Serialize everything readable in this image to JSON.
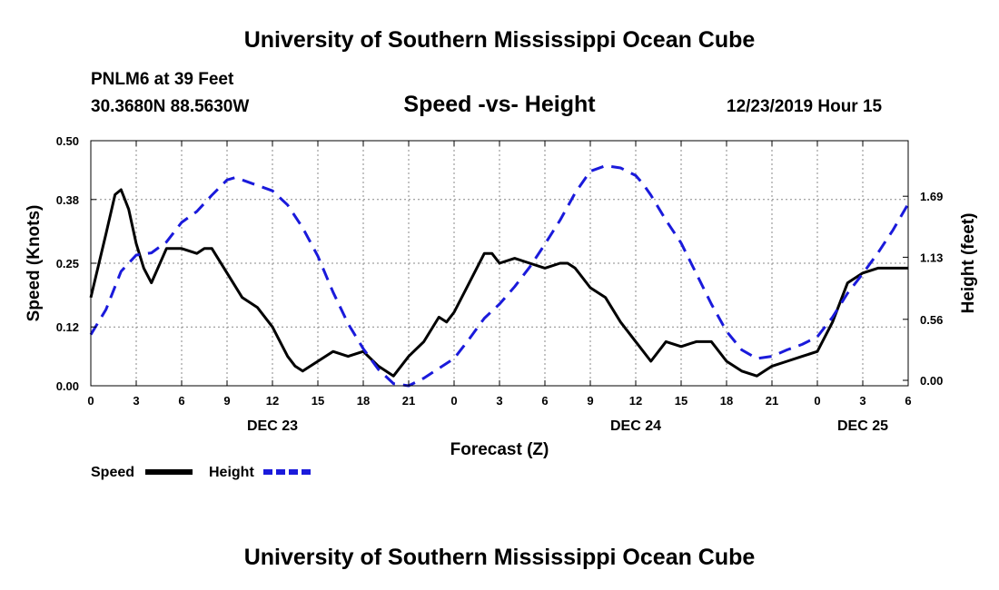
{
  "header": {
    "top_title": "University of Southern Mississippi Ocean Cube",
    "station": "PNLM6 at 39 Feet",
    "coords": "30.3680N 88.5630W",
    "datetime": "12/23/2019 Hour 15",
    "bottom_title": "University of Southern Mississippi Ocean Cube"
  },
  "chart_data": {
    "type": "line",
    "title": "Speed -vs- Height",
    "xlabel": "Forecast (Z)",
    "ylabel_left": "Speed (Knots)",
    "ylabel_right": "Height (feet)",
    "x_range_hours": [
      0,
      54
    ],
    "x_ticks": [
      "0",
      "3",
      "6",
      "9",
      "12",
      "15",
      "18",
      "21",
      "0",
      "3",
      "6",
      "9",
      "12",
      "15",
      "18",
      "21",
      "0",
      "3",
      "6"
    ],
    "date_labels": [
      {
        "label": "DEC 23",
        "hour": 12
      },
      {
        "label": "DEC 24",
        "hour": 36
      },
      {
        "label": "DEC 25",
        "hour": 51
      }
    ],
    "left_axis": {
      "range": [
        0,
        0.5
      ],
      "ticks": [
        "0.00",
        "0.12",
        "0.25",
        "0.38",
        "0.50"
      ]
    },
    "right_axis": {
      "range": [
        -0.05,
        2.2
      ],
      "ticks": [
        {
          "label": "0.00",
          "value": 0.0
        },
        {
          "label": "0.56",
          "value": 0.56
        },
        {
          "label": "1.13",
          "value": 1.13
        },
        {
          "label": "1.69",
          "value": 1.69
        }
      ]
    },
    "series": [
      {
        "name": "Speed",
        "color": "#000000",
        "style": "solid",
        "axis": "left",
        "x": [
          0,
          1,
          1.6,
          2,
          2.5,
          3,
          3.5,
          4,
          5,
          6,
          7,
          7.5,
          8,
          9,
          10,
          11,
          12,
          13,
          13.5,
          14,
          15,
          16,
          17,
          18,
          19,
          20,
          21,
          22,
          23,
          23.5,
          24,
          25,
          26,
          26.5,
          27,
          28,
          29,
          30,
          31,
          31.5,
          32,
          33,
          34,
          35,
          36,
          37,
          38,
          39,
          40,
          41,
          42,
          43,
          44,
          44.5,
          45,
          46,
          47,
          48,
          49,
          50,
          51,
          52,
          53,
          54
        ],
        "values": [
          0.18,
          0.31,
          0.39,
          0.4,
          0.36,
          0.29,
          0.24,
          0.21,
          0.28,
          0.28,
          0.27,
          0.28,
          0.28,
          0.23,
          0.18,
          0.16,
          0.12,
          0.06,
          0.04,
          0.03,
          0.05,
          0.07,
          0.06,
          0.07,
          0.04,
          0.02,
          0.06,
          0.09,
          0.14,
          0.13,
          0.15,
          0.21,
          0.27,
          0.27,
          0.25,
          0.26,
          0.25,
          0.24,
          0.25,
          0.25,
          0.24,
          0.2,
          0.18,
          0.13,
          0.09,
          0.05,
          0.09,
          0.08,
          0.09,
          0.09,
          0.05,
          0.03,
          0.02,
          0.03,
          0.04,
          0.05,
          0.06,
          0.07,
          0.13,
          0.21,
          0.23,
          0.24,
          0.24,
          0.24
        ]
      },
      {
        "name": "Height",
        "color": "#1a1adb",
        "style": "dashed",
        "axis": "right",
        "x": [
          0,
          1,
          2,
          3,
          4,
          5,
          6,
          7,
          8,
          9,
          9.5,
          10,
          11,
          12,
          13,
          14,
          15,
          16,
          17,
          18,
          19,
          20,
          21,
          22,
          23,
          24,
          25,
          26,
          27,
          28,
          29,
          30,
          31,
          32,
          33,
          34,
          35,
          36,
          36.5,
          37,
          38,
          39,
          40,
          41,
          42,
          43,
          44,
          45,
          46,
          47,
          48,
          49,
          50,
          51,
          52,
          53,
          54
        ],
        "values": [
          0.42,
          0.65,
          1.0,
          1.15,
          1.17,
          1.27,
          1.45,
          1.55,
          1.7,
          1.84,
          1.86,
          1.84,
          1.79,
          1.74,
          1.61,
          1.4,
          1.14,
          0.81,
          0.52,
          0.29,
          0.1,
          -0.03,
          -0.05,
          0.02,
          0.11,
          0.2,
          0.38,
          0.57,
          0.7,
          0.86,
          1.04,
          1.25,
          1.47,
          1.72,
          1.92,
          1.97,
          1.95,
          1.88,
          1.8,
          1.7,
          1.47,
          1.26,
          0.98,
          0.7,
          0.45,
          0.28,
          0.2,
          0.22,
          0.28,
          0.33,
          0.4,
          0.58,
          0.8,
          0.98,
          1.17,
          1.38,
          1.62
        ]
      }
    ],
    "legend": [
      {
        "label": "Speed",
        "color": "#000000",
        "style": "solid"
      },
      {
        "label": "Height",
        "color": "#1a1adb",
        "style": "dashed"
      }
    ],
    "legend_position": "bottom-left",
    "grid": "horizontal dashed at ticks"
  }
}
